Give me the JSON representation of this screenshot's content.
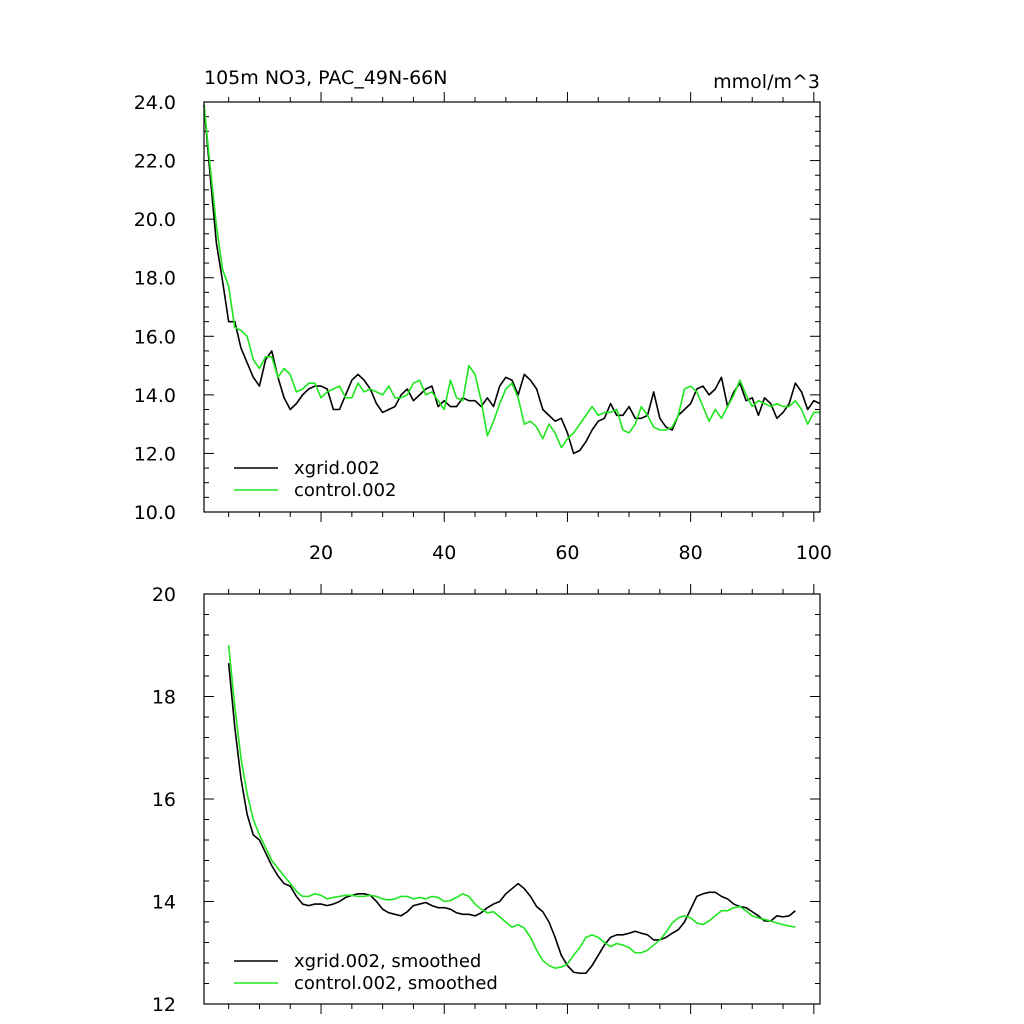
{
  "chart_data": [
    {
      "type": "line",
      "title": "105m NO3, PAC_49N-66N",
      "units": "mmol/m^3",
      "xlim": [
        1,
        101
      ],
      "ylim": [
        10,
        24
      ],
      "xticks": [
        20,
        40,
        60,
        80,
        100
      ],
      "xtick_labels": [
        "20",
        "40",
        "60",
        "80",
        "100"
      ],
      "yticks": [
        10,
        12,
        14,
        16,
        18,
        20,
        22,
        24
      ],
      "ytick_labels": [
        "10.0",
        "12.0",
        "14.0",
        "16.0",
        "18.0",
        "20.0",
        "22.0",
        "24.0"
      ],
      "legend_position": "bottom-left",
      "series": [
        {
          "name": "xgrid.002",
          "color": "#000000",
          "x": [
            1,
            2,
            3,
            4,
            5,
            6,
            7,
            8,
            9,
            10,
            11,
            12,
            13,
            14,
            15,
            16,
            17,
            18,
            19,
            20,
            21,
            22,
            23,
            24,
            25,
            26,
            27,
            28,
            29,
            30,
            31,
            32,
            33,
            34,
            35,
            36,
            37,
            38,
            39,
            40,
            41,
            42,
            43,
            44,
            45,
            46,
            47,
            48,
            49,
            50,
            51,
            52,
            53,
            54,
            55,
            56,
            57,
            58,
            59,
            60,
            61,
            62,
            63,
            64,
            65,
            66,
            67,
            68,
            69,
            70,
            71,
            72,
            73,
            74,
            75,
            76,
            77,
            78,
            79,
            80,
            81,
            82,
            83,
            84,
            85,
            86,
            87,
            88,
            89,
            90,
            91,
            92,
            93,
            94,
            95,
            96,
            97,
            98,
            99,
            100,
            101
          ],
          "values": [
            23.9,
            21.5,
            19.2,
            17.9,
            16.5,
            16.5,
            15.6,
            15.1,
            14.6,
            14.3,
            15.2,
            15.5,
            14.6,
            13.9,
            13.5,
            13.7,
            14.0,
            14.2,
            14.3,
            14.3,
            14.2,
            13.5,
            13.5,
            14.0,
            14.5,
            14.7,
            14.5,
            14.2,
            13.7,
            13.4,
            13.5,
            13.6,
            14.0,
            14.2,
            13.8,
            14.0,
            14.2,
            14.3,
            13.6,
            13.8,
            13.6,
            13.6,
            13.9,
            13.8,
            13.8,
            13.6,
            13.9,
            13.6,
            14.3,
            14.6,
            14.5,
            14.0,
            14.7,
            14.5,
            14.2,
            13.5,
            13.3,
            13.1,
            13.2,
            12.7,
            12.0,
            12.1,
            12.4,
            12.8,
            13.1,
            13.2,
            13.7,
            13.3,
            13.3,
            13.6,
            13.2,
            13.2,
            13.3,
            14.1,
            13.2,
            12.9,
            12.8,
            13.3,
            13.5,
            13.7,
            14.2,
            14.3,
            14.0,
            14.2,
            14.6,
            13.6,
            14.1,
            14.4,
            13.8,
            13.9,
            13.3,
            13.9,
            13.7,
            13.2,
            13.4,
            13.7,
            14.4,
            14.1,
            13.5,
            13.8,
            13.7
          ]
        },
        {
          "name": "control.002",
          "color": "#1ee61e",
          "x": [
            1,
            2,
            3,
            4,
            5,
            6,
            7,
            8,
            9,
            10,
            11,
            12,
            13,
            14,
            15,
            16,
            17,
            18,
            19,
            20,
            21,
            22,
            23,
            24,
            25,
            26,
            27,
            28,
            29,
            30,
            31,
            32,
            33,
            34,
            35,
            36,
            37,
            38,
            39,
            40,
            41,
            42,
            43,
            44,
            45,
            46,
            47,
            48,
            49,
            50,
            51,
            52,
            53,
            54,
            55,
            56,
            57,
            58,
            59,
            60,
            61,
            62,
            63,
            64,
            65,
            66,
            67,
            68,
            69,
            70,
            71,
            72,
            73,
            74,
            75,
            76,
            77,
            78,
            79,
            80,
            81,
            82,
            83,
            84,
            85,
            86,
            87,
            88,
            89,
            90,
            91,
            92,
            93,
            94,
            95,
            96,
            97,
            98,
            99,
            100,
            101
          ],
          "values": [
            23.9,
            21.8,
            19.8,
            18.3,
            17.7,
            16.3,
            16.2,
            16.0,
            15.2,
            14.9,
            15.3,
            15.3,
            14.6,
            14.9,
            14.7,
            14.1,
            14.2,
            14.4,
            14.4,
            13.9,
            14.1,
            14.2,
            14.3,
            13.9,
            13.9,
            14.4,
            14.1,
            14.2,
            14.1,
            14.0,
            14.3,
            13.9,
            13.9,
            14.0,
            14.4,
            14.5,
            14.0,
            14.1,
            13.8,
            13.5,
            14.5,
            13.9,
            13.8,
            15.0,
            14.7,
            13.8,
            12.6,
            13.1,
            13.7,
            14.2,
            14.4,
            13.9,
            13.0,
            13.1,
            12.9,
            12.5,
            13.0,
            12.7,
            12.2,
            12.5,
            12.7,
            13.0,
            13.3,
            13.6,
            13.3,
            13.4,
            13.4,
            13.5,
            12.8,
            12.7,
            13.0,
            13.6,
            13.3,
            12.9,
            12.8,
            12.8,
            12.9,
            13.3,
            14.2,
            14.3,
            14.1,
            13.6,
            13.1,
            13.5,
            13.2,
            13.6,
            14.0,
            14.5,
            14.0,
            13.6,
            13.8,
            13.7,
            13.6,
            13.7,
            13.6,
            13.6,
            13.8,
            13.5,
            13.0,
            13.4,
            13.4
          ]
        }
      ]
    },
    {
      "type": "line",
      "xlim": [
        1,
        101
      ],
      "ylim": [
        12,
        20
      ],
      "xticks": [
        20,
        40,
        60,
        80,
        100
      ],
      "yticks": [
        12,
        14,
        16,
        18,
        20
      ],
      "ytick_labels": [
        "12",
        "14",
        "16",
        "18",
        "20"
      ],
      "legend_position": "bottom-left",
      "series": [
        {
          "name": "xgrid.002, smoothed",
          "color": "#000000",
          "x": [
            5,
            6,
            7,
            8,
            9,
            10,
            11,
            12,
            13,
            14,
            15,
            16,
            17,
            18,
            19,
            20,
            21,
            22,
            23,
            24,
            25,
            26,
            27,
            28,
            29,
            30,
            31,
            32,
            33,
            34,
            35,
            36,
            37,
            38,
            39,
            40,
            41,
            42,
            43,
            44,
            45,
            46,
            47,
            48,
            49,
            50,
            51,
            52,
            53,
            54,
            55,
            56,
            57,
            58,
            59,
            60,
            61,
            62,
            63,
            64,
            65,
            66,
            67,
            68,
            69,
            70,
            71,
            72,
            73,
            74,
            75,
            76,
            77,
            78,
            79,
            80,
            81,
            82,
            83,
            84,
            85,
            86,
            87,
            88,
            89,
            90,
            91,
            92,
            93,
            94,
            95,
            96,
            97
          ],
          "values": [
            18.65,
            17.4,
            16.4,
            15.7,
            15.3,
            15.2,
            14.95,
            14.7,
            14.5,
            14.35,
            14.3,
            14.1,
            13.95,
            13.92,
            13.95,
            13.95,
            13.92,
            13.95,
            14.0,
            14.08,
            14.12,
            14.15,
            14.15,
            14.12,
            14.0,
            13.85,
            13.78,
            13.75,
            13.72,
            13.8,
            13.92,
            13.95,
            13.98,
            13.92,
            13.88,
            13.88,
            13.85,
            13.78,
            13.75,
            13.75,
            13.72,
            13.78,
            13.88,
            13.95,
            14.0,
            14.15,
            14.25,
            14.35,
            14.25,
            14.1,
            13.9,
            13.8,
            13.6,
            13.3,
            12.95,
            12.75,
            12.62,
            12.6,
            12.6,
            12.75,
            12.95,
            13.15,
            13.3,
            13.35,
            13.35,
            13.38,
            13.42,
            13.38,
            13.35,
            13.25,
            13.25,
            13.3,
            13.38,
            13.45,
            13.6,
            13.85,
            14.1,
            14.15,
            14.18,
            14.18,
            14.1,
            14.05,
            13.95,
            13.9,
            13.88,
            13.8,
            13.72,
            13.62,
            13.62,
            13.72,
            13.7,
            13.72,
            13.82
          ]
        },
        {
          "name": "control.002, smoothed",
          "color": "#1ee61e",
          "x": [
            5,
            6,
            7,
            8,
            9,
            10,
            11,
            12,
            13,
            14,
            15,
            16,
            17,
            18,
            19,
            20,
            21,
            22,
            23,
            24,
            25,
            26,
            27,
            28,
            29,
            30,
            31,
            32,
            33,
            34,
            35,
            36,
            37,
            38,
            39,
            40,
            41,
            42,
            43,
            44,
            45,
            46,
            47,
            48,
            49,
            50,
            51,
            52,
            53,
            54,
            55,
            56,
            57,
            58,
            59,
            60,
            61,
            62,
            63,
            64,
            65,
            66,
            67,
            68,
            69,
            70,
            71,
            72,
            73,
            74,
            75,
            76,
            77,
            78,
            79,
            80,
            81,
            82,
            83,
            84,
            85,
            86,
            87,
            88,
            89,
            90,
            91,
            92,
            93,
            94,
            95,
            96,
            97
          ],
          "values": [
            19.0,
            17.8,
            16.8,
            16.1,
            15.6,
            15.3,
            15.05,
            14.8,
            14.65,
            14.5,
            14.35,
            14.2,
            14.1,
            14.1,
            14.15,
            14.12,
            14.05,
            14.08,
            14.1,
            14.12,
            14.12,
            14.1,
            14.1,
            14.12,
            14.1,
            14.05,
            14.03,
            14.05,
            14.1,
            14.1,
            14.05,
            14.08,
            14.05,
            14.1,
            14.08,
            14.0,
            14.02,
            14.08,
            14.15,
            14.1,
            13.95,
            13.85,
            13.78,
            13.8,
            13.7,
            13.6,
            13.5,
            13.55,
            13.48,
            13.3,
            13.05,
            12.85,
            12.75,
            12.7,
            12.72,
            12.78,
            12.95,
            13.1,
            13.3,
            13.35,
            13.3,
            13.2,
            13.12,
            13.18,
            13.15,
            13.1,
            13.0,
            13.0,
            13.05,
            13.15,
            13.25,
            13.4,
            13.58,
            13.68,
            13.72,
            13.68,
            13.58,
            13.55,
            13.62,
            13.72,
            13.82,
            13.82,
            13.88,
            13.9,
            13.82,
            13.72,
            13.68,
            13.65,
            13.62,
            13.58,
            13.55,
            13.52,
            13.5
          ]
        }
      ]
    }
  ]
}
